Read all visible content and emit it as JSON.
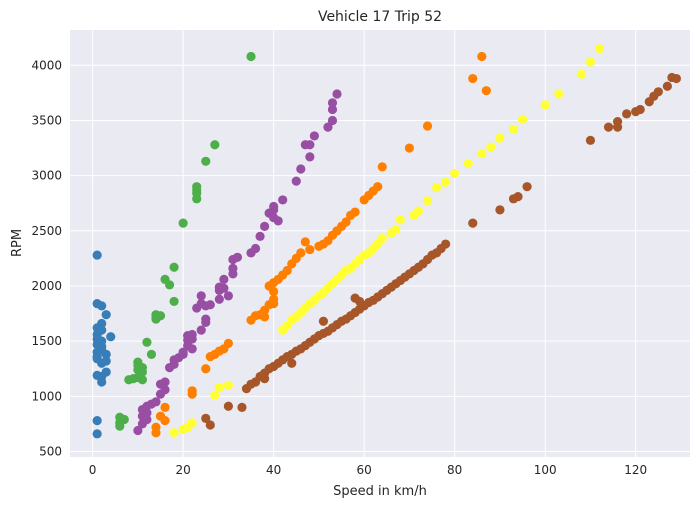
{
  "chart_data": {
    "type": "scatter",
    "title": "Vehicle 17 Trip 52",
    "xlabel": "Speed in km/h",
    "ylabel": "RPM",
    "xlim": [
      -5,
      132
    ],
    "ylim": [
      450,
      4320
    ],
    "xticks": [
      0,
      20,
      40,
      60,
      80,
      100,
      120
    ],
    "yticks": [
      500,
      1000,
      1500,
      2000,
      2500,
      3000,
      3500,
      4000
    ],
    "grid": true,
    "background": "#eaeaf2",
    "series": [
      {
        "color": "#377eb8",
        "points": [
          [
            1,
            2280
          ],
          [
            1,
            1840
          ],
          [
            2,
            1820
          ],
          [
            1,
            1620
          ],
          [
            2,
            1660
          ],
          [
            1,
            1560
          ],
          [
            2,
            1600
          ],
          [
            3,
            1740
          ],
          [
            1,
            1520
          ],
          [
            2,
            1500
          ],
          [
            1,
            1470
          ],
          [
            2,
            1450
          ],
          [
            1,
            1400
          ],
          [
            2,
            1420
          ],
          [
            1,
            1360
          ],
          [
            3,
            1380
          ],
          [
            1,
            1340
          ],
          [
            2,
            1300
          ],
          [
            3,
            1320
          ],
          [
            1,
            1190
          ],
          [
            2,
            1180
          ],
          [
            2,
            1130
          ],
          [
            3,
            1220
          ],
          [
            4,
            1540
          ],
          [
            1,
            780
          ],
          [
            1,
            660
          ]
        ]
      },
      {
        "color": "#4daf4a",
        "points": [
          [
            35,
            4080
          ],
          [
            27,
            3280
          ],
          [
            25,
            3130
          ],
          [
            23,
            2900
          ],
          [
            23,
            2870
          ],
          [
            23,
            2840
          ],
          [
            23,
            2790
          ],
          [
            20,
            2570
          ],
          [
            18,
            2170
          ],
          [
            16,
            2060
          ],
          [
            17,
            2010
          ],
          [
            18,
            1860
          ],
          [
            14,
            1740
          ],
          [
            14,
            1720
          ],
          [
            15,
            1730
          ],
          [
            14,
            1700
          ],
          [
            12,
            1490
          ],
          [
            13,
            1380
          ],
          [
            10,
            1310
          ],
          [
            10,
            1280
          ],
          [
            11,
            1260
          ],
          [
            10,
            1240
          ],
          [
            11,
            1220
          ],
          [
            9,
            1160
          ],
          [
            8,
            1150
          ],
          [
            10,
            1170
          ],
          [
            11,
            1150
          ],
          [
            6,
            810
          ],
          [
            7,
            790
          ],
          [
            6,
            760
          ],
          [
            6,
            730
          ]
        ]
      },
      {
        "color": "#984ea3",
        "points": [
          [
            54,
            3740
          ],
          [
            53,
            3660
          ],
          [
            53,
            3600
          ],
          [
            53,
            3500
          ],
          [
            52,
            3440
          ],
          [
            49,
            3360
          ],
          [
            47,
            3280
          ],
          [
            48,
            3280
          ],
          [
            48,
            3170
          ],
          [
            46,
            3060
          ],
          [
            45,
            2950
          ],
          [
            42,
            2780
          ],
          [
            40,
            2720
          ],
          [
            40,
            2690
          ],
          [
            39,
            2660
          ],
          [
            40,
            2620
          ],
          [
            41,
            2590
          ],
          [
            38,
            2540
          ],
          [
            37,
            2450
          ],
          [
            36,
            2340
          ],
          [
            35,
            2300
          ],
          [
            32,
            2260
          ],
          [
            31,
            2240
          ],
          [
            31,
            2160
          ],
          [
            31,
            2110
          ],
          [
            29,
            2060
          ],
          [
            28,
            1990
          ],
          [
            28,
            1960
          ],
          [
            29,
            1980
          ],
          [
            30,
            1910
          ],
          [
            28,
            1880
          ],
          [
            26,
            1830
          ],
          [
            25,
            1820
          ],
          [
            24,
            1910
          ],
          [
            24,
            1840
          ],
          [
            23,
            1800
          ],
          [
            25,
            1700
          ],
          [
            25,
            1670
          ],
          [
            24,
            1600
          ],
          [
            22,
            1560
          ],
          [
            22,
            1520
          ],
          [
            21,
            1550
          ],
          [
            21,
            1510
          ],
          [
            21,
            1460
          ],
          [
            22,
            1430
          ],
          [
            20,
            1400
          ],
          [
            19,
            1350
          ],
          [
            20,
            1380
          ],
          [
            18,
            1330
          ],
          [
            18,
            1290
          ],
          [
            17,
            1260
          ],
          [
            16,
            1130
          ],
          [
            15,
            1110
          ],
          [
            16,
            1060
          ],
          [
            15,
            1020
          ],
          [
            14,
            950
          ],
          [
            13,
            930
          ],
          [
            12,
            910
          ],
          [
            11,
            880
          ],
          [
            12,
            850
          ],
          [
            11,
            820
          ],
          [
            12,
            790
          ],
          [
            11,
            750
          ],
          [
            10,
            690
          ]
        ]
      },
      {
        "color": "#ff7f00",
        "points": [
          [
            86,
            4080
          ],
          [
            84,
            3880
          ],
          [
            87,
            3770
          ],
          [
            74,
            3450
          ],
          [
            70,
            3250
          ],
          [
            64,
            3080
          ],
          [
            63,
            2900
          ],
          [
            62,
            2860
          ],
          [
            61,
            2820
          ],
          [
            60,
            2780
          ],
          [
            58,
            2670
          ],
          [
            57,
            2640
          ],
          [
            56,
            2580
          ],
          [
            55,
            2540
          ],
          [
            54,
            2500
          ],
          [
            53,
            2460
          ],
          [
            52,
            2410
          ],
          [
            51,
            2380
          ],
          [
            50,
            2360
          ],
          [
            47,
            2400
          ],
          [
            48,
            2330
          ],
          [
            46,
            2300
          ],
          [
            45,
            2250
          ],
          [
            44,
            2200
          ],
          [
            43,
            2140
          ],
          [
            42,
            2100
          ],
          [
            41,
            2060
          ],
          [
            40,
            2030
          ],
          [
            39,
            2000
          ],
          [
            40,
            1950
          ],
          [
            40,
            1880
          ],
          [
            40,
            1840
          ],
          [
            39,
            1830
          ],
          [
            38,
            1780
          ],
          [
            37,
            1740
          ],
          [
            36,
            1730
          ],
          [
            38,
            1720
          ],
          [
            35,
            1690
          ],
          [
            30,
            1480
          ],
          [
            29,
            1430
          ],
          [
            28,
            1410
          ],
          [
            27,
            1380
          ],
          [
            26,
            1360
          ],
          [
            25,
            1250
          ],
          [
            22,
            1050
          ],
          [
            22,
            1020
          ],
          [
            16,
            900
          ],
          [
            15,
            820
          ],
          [
            16,
            780
          ],
          [
            14,
            720
          ],
          [
            14,
            670
          ]
        ]
      },
      {
        "color": "#ffff33",
        "points": [
          [
            112,
            4150
          ],
          [
            110,
            4030
          ],
          [
            108,
            3920
          ],
          [
            103,
            3740
          ],
          [
            100,
            3640
          ],
          [
            95,
            3510
          ],
          [
            93,
            3420
          ],
          [
            90,
            3340
          ],
          [
            88,
            3260
          ],
          [
            86,
            3200
          ],
          [
            83,
            3110
          ],
          [
            80,
            3020
          ],
          [
            78,
            2940
          ],
          [
            76,
            2890
          ],
          [
            74,
            2770
          ],
          [
            72,
            2680
          ],
          [
            71,
            2640
          ],
          [
            68,
            2600
          ],
          [
            67,
            2510
          ],
          [
            66,
            2480
          ],
          [
            64,
            2430
          ],
          [
            63,
            2380
          ],
          [
            62,
            2340
          ],
          [
            61,
            2300
          ],
          [
            60,
            2280
          ],
          [
            59,
            2240
          ],
          [
            58,
            2200
          ],
          [
            57,
            2160
          ],
          [
            56,
            2140
          ],
          [
            55,
            2100
          ],
          [
            54,
            2060
          ],
          [
            53,
            2020
          ],
          [
            52,
            1980
          ],
          [
            51,
            1940
          ],
          [
            50,
            1910
          ],
          [
            49,
            1870
          ],
          [
            48,
            1840
          ],
          [
            47,
            1800
          ],
          [
            46,
            1760
          ],
          [
            45,
            1720
          ],
          [
            44,
            1690
          ],
          [
            43,
            1640
          ],
          [
            42,
            1600
          ],
          [
            30,
            1100
          ],
          [
            28,
            1080
          ],
          [
            27,
            1010
          ],
          [
            22,
            760
          ],
          [
            21,
            720
          ],
          [
            20,
            700
          ],
          [
            18,
            670
          ]
        ]
      },
      {
        "color": "#a65628",
        "points": [
          [
            129,
            3880
          ],
          [
            128,
            3890
          ],
          [
            127,
            3810
          ],
          [
            125,
            3760
          ],
          [
            124,
            3720
          ],
          [
            123,
            3670
          ],
          [
            121,
            3600
          ],
          [
            120,
            3580
          ],
          [
            118,
            3560
          ],
          [
            116,
            3490
          ],
          [
            116,
            3440
          ],
          [
            114,
            3440
          ],
          [
            110,
            3320
          ],
          [
            96,
            2900
          ],
          [
            94,
            2810
          ],
          [
            93,
            2790
          ],
          [
            90,
            2690
          ],
          [
            84,
            2570
          ],
          [
            78,
            2380
          ],
          [
            77,
            2340
          ],
          [
            76,
            2300
          ],
          [
            75,
            2280
          ],
          [
            74,
            2240
          ],
          [
            73,
            2200
          ],
          [
            72,
            2170
          ],
          [
            71,
            2140
          ],
          [
            70,
            2110
          ],
          [
            69,
            2080
          ],
          [
            68,
            2050
          ],
          [
            67,
            2020
          ],
          [
            66,
            1990
          ],
          [
            65,
            1960
          ],
          [
            64,
            1930
          ],
          [
            63,
            1900
          ],
          [
            62,
            1870
          ],
          [
            61,
            1850
          ],
          [
            60,
            1820
          ],
          [
            59,
            1790
          ],
          [
            58,
            1760
          ],
          [
            57,
            1730
          ],
          [
            56,
            1700
          ],
          [
            55,
            1680
          ],
          [
            54,
            1650
          ],
          [
            53,
            1620
          ],
          [
            52,
            1590
          ],
          [
            51,
            1570
          ],
          [
            50,
            1550
          ],
          [
            49,
            1520
          ],
          [
            48,
            1490
          ],
          [
            47,
            1460
          ],
          [
            46,
            1430
          ],
          [
            45,
            1410
          ],
          [
            44,
            1380
          ],
          [
            43,
            1360
          ],
          [
            42,
            1330
          ],
          [
            41,
            1300
          ],
          [
            40,
            1270
          ],
          [
            39,
            1250
          ],
          [
            38,
            1210
          ],
          [
            37,
            1180
          ],
          [
            36,
            1130
          ],
          [
            35,
            1110
          ],
          [
            34,
            1070
          ],
          [
            58,
            1890
          ],
          [
            59,
            1860
          ],
          [
            51,
            1680
          ],
          [
            44,
            1300
          ],
          [
            38,
            1160
          ],
          [
            33,
            900
          ],
          [
            30,
            910
          ],
          [
            25,
            800
          ],
          [
            26,
            740
          ]
        ]
      }
    ]
  }
}
